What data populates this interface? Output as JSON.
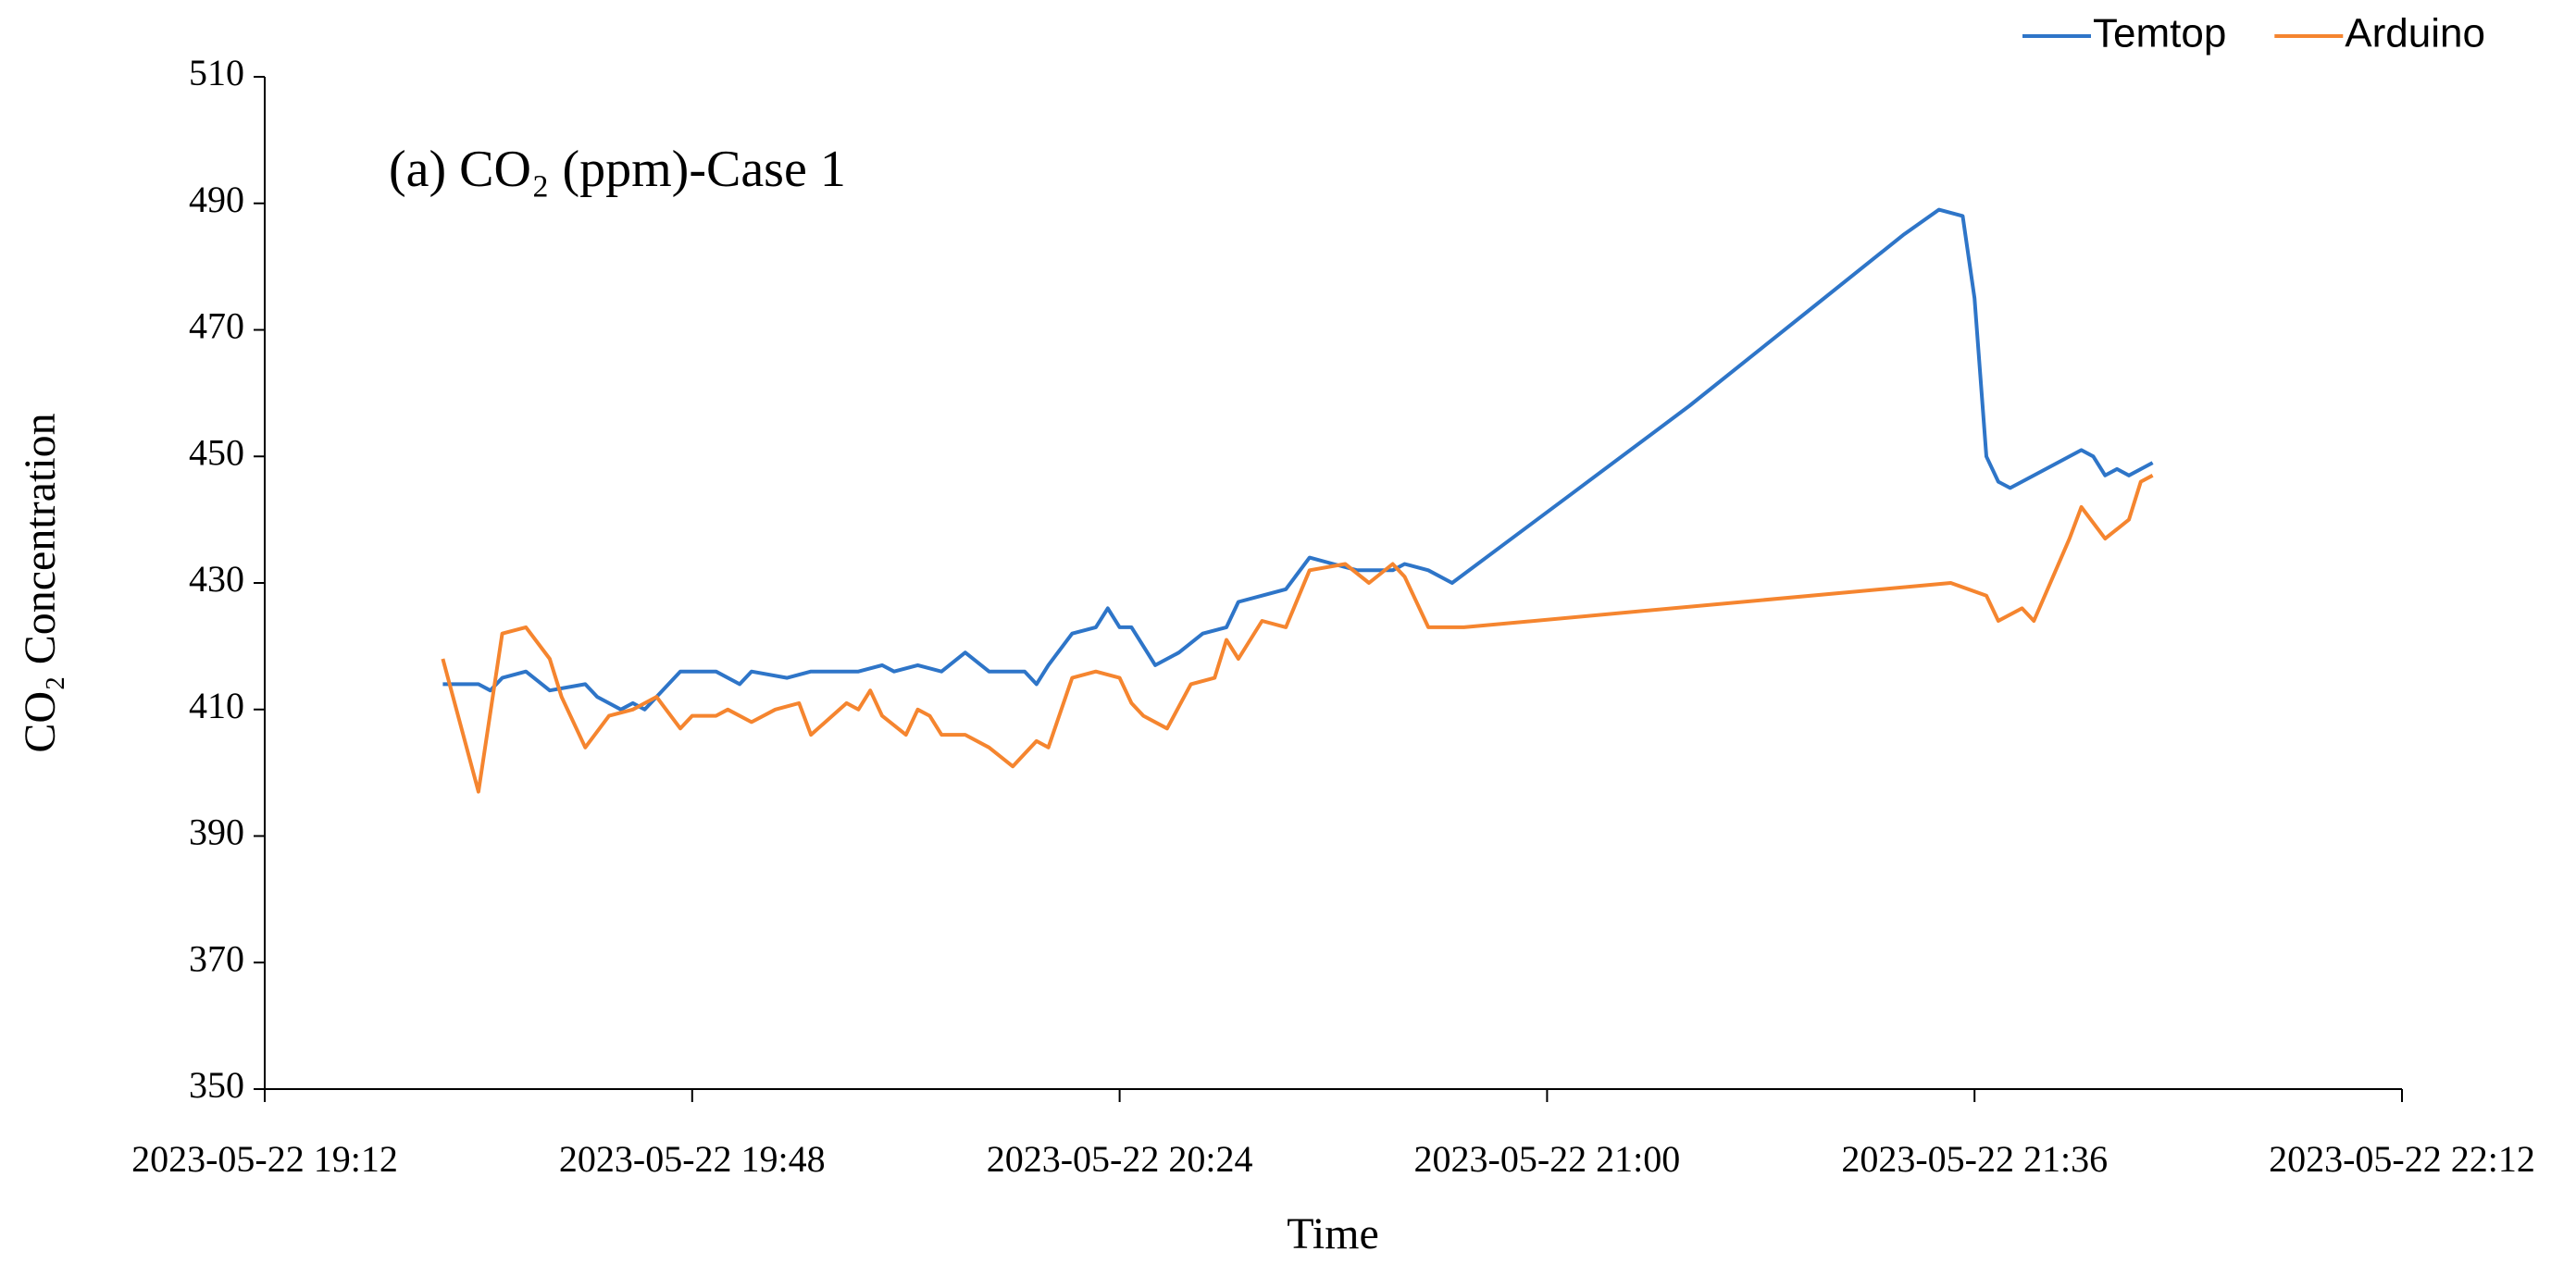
{
  "chart_data": {
    "type": "line",
    "title": "(a) CO₂ (ppm)-Case 1",
    "x_label": "Time",
    "y_label": "CO₂ Concentration",
    "xlim": [
      "2023-05-22 19:12",
      "2023-05-22 22:12"
    ],
    "xticks": [
      "2023-05-22 19:12",
      "2023-05-22 19:48",
      "2023-05-22 20:24",
      "2023-05-22 21:00",
      "2023-05-22 21:36",
      "2023-05-22 22:12"
    ],
    "ylim": [
      350,
      510
    ],
    "yticks": [
      350,
      370,
      390,
      410,
      430,
      450,
      470,
      490,
      510
    ],
    "grid": false,
    "legend": "top-right",
    "series": [
      {
        "name": "Temtop",
        "color": "#2e75c8",
        "x": [
          "2023-05-22 19:27",
          "2023-05-22 19:30",
          "2023-05-22 19:31",
          "2023-05-22 19:32",
          "2023-05-22 19:34",
          "2023-05-22 19:36",
          "2023-05-22 19:39",
          "2023-05-22 19:40",
          "2023-05-22 19:42",
          "2023-05-22 19:43",
          "2023-05-22 19:44",
          "2023-05-22 19:47",
          "2023-05-22 19:50",
          "2023-05-22 19:52",
          "2023-05-22 19:53",
          "2023-05-22 19:56",
          "2023-05-22 19:58",
          "2023-05-22 20:02",
          "2023-05-22 20:04",
          "2023-05-22 20:05",
          "2023-05-22 20:07",
          "2023-05-22 20:09",
          "2023-05-22 20:11",
          "2023-05-22 20:13",
          "2023-05-22 20:16",
          "2023-05-22 20:17",
          "2023-05-22 20:18",
          "2023-05-22 20:20",
          "2023-05-22 20:22",
          "2023-05-22 20:23",
          "2023-05-22 20:24",
          "2023-05-22 20:25",
          "2023-05-22 20:26",
          "2023-05-22 20:27",
          "2023-05-22 20:29",
          "2023-05-22 20:31",
          "2023-05-22 20:33",
          "2023-05-22 20:34",
          "2023-05-22 20:36",
          "2023-05-22 20:38",
          "2023-05-22 20:40",
          "2023-05-22 20:42",
          "2023-05-22 20:44",
          "2023-05-22 20:47",
          "2023-05-22 20:48",
          "2023-05-22 20:50",
          "2023-05-22 20:52",
          "2023-05-22 21:02",
          "2023-05-22 21:12",
          "2023-05-22 21:22",
          "2023-05-22 21:30",
          "2023-05-22 21:33",
          "2023-05-22 21:35",
          "2023-05-22 21:36",
          "2023-05-22 21:37",
          "2023-05-22 21:38",
          "2023-05-22 21:39",
          "2023-05-22 21:42",
          "2023-05-22 21:45",
          "2023-05-22 21:46",
          "2023-05-22 21:47",
          "2023-05-22 21:48",
          "2023-05-22 21:49",
          "2023-05-22 21:51"
        ],
        "values": [
          414,
          414,
          413,
          415,
          416,
          413,
          414,
          412,
          410,
          411,
          410,
          416,
          416,
          414,
          416,
          415,
          416,
          416,
          417,
          416,
          417,
          416,
          419,
          416,
          416,
          414,
          417,
          422,
          423,
          426,
          423,
          423,
          420,
          417,
          419,
          422,
          423,
          427,
          428,
          429,
          434,
          433,
          432,
          432,
          433,
          432,
          430,
          444,
          458,
          473,
          485,
          489,
          488,
          475,
          450,
          446,
          445,
          448,
          451,
          450,
          447,
          448,
          447,
          449
        ]
      },
      {
        "name": "Arduino",
        "color": "#f5852f",
        "x": [
          "2023-05-22 19:27",
          "2023-05-22 19:30",
          "2023-05-22 19:32",
          "2023-05-22 19:34",
          "2023-05-22 19:36",
          "2023-05-22 19:37",
          "2023-05-22 19:39",
          "2023-05-22 19:41",
          "2023-05-22 19:43",
          "2023-05-22 19:45",
          "2023-05-22 19:47",
          "2023-05-22 19:48",
          "2023-05-22 19:50",
          "2023-05-22 19:51",
          "2023-05-22 19:53",
          "2023-05-22 19:55",
          "2023-05-22 19:57",
          "2023-05-22 19:58",
          "2023-05-22 20:01",
          "2023-05-22 20:02",
          "2023-05-22 20:03",
          "2023-05-22 20:04",
          "2023-05-22 20:06",
          "2023-05-22 20:07",
          "2023-05-22 20:08",
          "2023-05-22 20:09",
          "2023-05-22 20:11",
          "2023-05-22 20:13",
          "2023-05-22 20:15",
          "2023-05-22 20:17",
          "2023-05-22 20:18",
          "2023-05-22 20:20",
          "2023-05-22 20:22",
          "2023-05-22 20:24",
          "2023-05-22 20:25",
          "2023-05-22 20:26",
          "2023-05-22 20:28",
          "2023-05-22 20:30",
          "2023-05-22 20:32",
          "2023-05-22 20:33",
          "2023-05-22 20:34",
          "2023-05-22 20:36",
          "2023-05-22 20:38",
          "2023-05-22 20:40",
          "2023-05-22 20:43",
          "2023-05-22 20:45",
          "2023-05-22 20:47",
          "2023-05-22 20:48",
          "2023-05-22 20:50",
          "2023-05-22 20:53",
          "2023-05-22 21:34",
          "2023-05-22 21:37",
          "2023-05-22 21:38",
          "2023-05-22 21:40",
          "2023-05-22 21:41",
          "2023-05-22 21:44",
          "2023-05-22 21:45",
          "2023-05-22 21:47",
          "2023-05-22 21:49",
          "2023-05-22 21:50",
          "2023-05-22 21:51"
        ],
        "values": [
          418,
          397,
          422,
          423,
          418,
          412,
          404,
          409,
          410,
          412,
          407,
          409,
          409,
          410,
          408,
          410,
          411,
          406,
          411,
          410,
          413,
          409,
          406,
          410,
          409,
          406,
          406,
          404,
          401,
          405,
          404,
          415,
          416,
          415,
          411,
          409,
          407,
          414,
          415,
          421,
          418,
          424,
          423,
          432,
          433,
          430,
          433,
          431,
          423,
          423,
          430,
          428,
          424,
          426,
          424,
          437,
          442,
          437,
          440,
          446,
          447
        ]
      }
    ]
  }
}
